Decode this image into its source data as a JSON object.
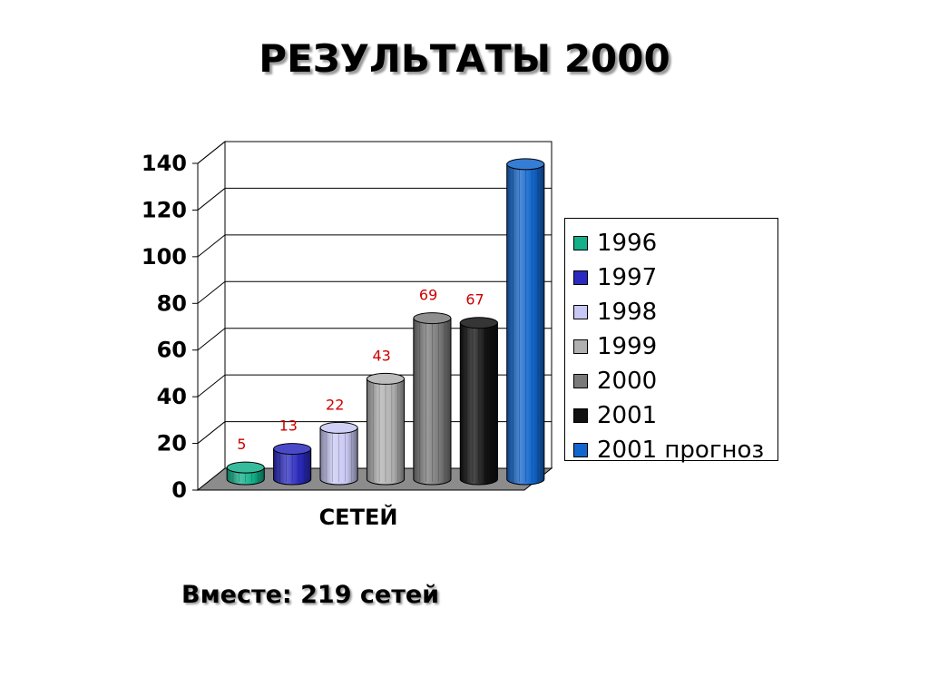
{
  "title": "РЕЗУЛЬТАТЫ 2000",
  "footer": "Вместе: 219 сетей",
  "chart_data": {
    "type": "bar",
    "title": "РЕЗУЛЬТАТЫ 2000",
    "categories": [
      "СЕТЕЙ"
    ],
    "xlabel": "",
    "ylabel": "",
    "ylim": [
      0,
      140
    ],
    "yticks": [
      0,
      20,
      40,
      60,
      80,
      100,
      120,
      140
    ],
    "grid": true,
    "legend_position": "right",
    "series": [
      {
        "name": "1996",
        "values": [
          5
        ],
        "color": "#13b08a",
        "data_label": "5"
      },
      {
        "name": "1997",
        "values": [
          13
        ],
        "color": "#2a2ac0",
        "data_label": "13"
      },
      {
        "name": "1998",
        "values": [
          22
        ],
        "color": "#c8c8f4",
        "data_label": "22"
      },
      {
        "name": "1999",
        "values": [
          43
        ],
        "color": "#b0b0b0",
        "data_label": "43"
      },
      {
        "name": "2000",
        "values": [
          69
        ],
        "color": "#7a7a7a",
        "data_label": "69"
      },
      {
        "name": "2001",
        "values": [
          67
        ],
        "color": "#111111",
        "data_label": "67"
      },
      {
        "name": "2001 прогноз",
        "values": [
          135
        ],
        "color": "#1266cc",
        "data_label": ""
      }
    ],
    "data_label_color": "#cc0000"
  }
}
